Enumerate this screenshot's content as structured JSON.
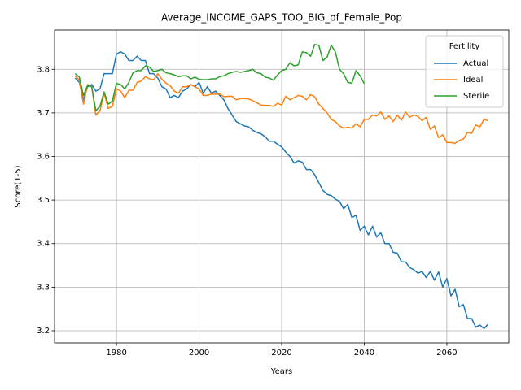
{
  "chart_data": {
    "type": "line",
    "title": "Average_INCOME_GAPS_TOO_BIG_of_Female_Pop",
    "x_label": "Years",
    "y_label": "Score(1-5)",
    "legend_title": "Fertility",
    "legend_loc": "upper right",
    "grid": true,
    "x": [
      1970,
      1971,
      1972,
      1973,
      1974,
      1975,
      1976,
      1977,
      1978,
      1979,
      1980,
      1981,
      1982,
      1983,
      1984,
      1985,
      1986,
      1987,
      1988,
      1989,
      1990,
      1991,
      1992,
      1993,
      1994,
      1995,
      1996,
      1997,
      1998,
      1999,
      2000,
      2001,
      2002,
      2003,
      2004,
      2005,
      2006,
      2007,
      2008,
      2009,
      2010,
      2011,
      2012,
      2013,
      2014,
      2015,
      2016,
      2017,
      2018,
      2019,
      2020,
      2021,
      2022,
      2023,
      2024,
      2025,
      2026,
      2027,
      2028,
      2029,
      2030,
      2031,
      2032,
      2033,
      2034,
      2035,
      2036,
      2037,
      2038,
      2039,
      2040,
      2041,
      2042,
      2043,
      2044,
      2045,
      2046,
      2047,
      2048,
      2049,
      2050,
      2051,
      2052,
      2053,
      2054,
      2055,
      2056,
      2057,
      2058,
      2059,
      2060,
      2061,
      2062,
      2063,
      2064,
      2065,
      2066,
      2067,
      2068,
      2069,
      2070
    ],
    "xlim": [
      1965,
      2075
    ],
    "xticks": [
      1980,
      2000,
      2020,
      2040,
      2060
    ],
    "ylim": [
      3.172,
      3.89
    ],
    "yticks": [
      3.2,
      3.3,
      3.4,
      3.5,
      3.6,
      3.7,
      3.8
    ],
    "series": [
      {
        "name": "Actual",
        "color": "#1f77b4",
        "values": [
          3.78,
          3.77,
          3.73,
          3.76,
          3.765,
          3.75,
          3.755,
          3.79,
          3.79,
          3.79,
          3.835,
          3.84,
          3.835,
          3.82,
          3.82,
          3.83,
          3.82,
          3.82,
          3.79,
          3.79,
          3.78,
          3.76,
          3.755,
          3.735,
          3.74,
          3.735,
          3.75,
          3.755,
          3.765,
          3.76,
          3.77,
          3.745,
          3.76,
          3.745,
          3.75,
          3.74,
          3.73,
          3.71,
          3.695,
          3.68,
          3.675,
          3.67,
          3.668,
          3.66,
          3.655,
          3.652,
          3.645,
          3.635,
          3.635,
          3.628,
          3.622,
          3.61,
          3.6,
          3.585,
          3.59,
          3.587,
          3.57,
          3.57,
          3.558,
          3.54,
          3.522,
          3.513,
          3.51,
          3.502,
          3.497,
          3.48,
          3.49,
          3.46,
          3.465,
          3.43,
          3.44,
          3.42,
          3.44,
          3.415,
          3.425,
          3.4,
          3.4,
          3.38,
          3.378,
          3.358,
          3.358,
          3.345,
          3.34,
          3.332,
          3.336,
          3.322,
          3.336,
          3.316,
          3.335,
          3.3,
          3.32,
          3.28,
          3.295,
          3.255,
          3.26,
          3.228,
          3.228,
          3.208,
          3.213,
          3.205,
          3.215
        ]
      },
      {
        "name": "Ideal",
        "color": "#ff7f0e",
        "values": [
          3.785,
          3.775,
          3.72,
          3.765,
          3.76,
          3.695,
          3.705,
          3.745,
          3.71,
          3.715,
          3.755,
          3.75,
          3.735,
          3.752,
          3.752,
          3.77,
          3.773,
          3.783,
          3.778,
          3.776,
          3.79,
          3.777,
          3.768,
          3.762,
          3.75,
          3.745,
          3.76,
          3.76,
          3.765,
          3.76,
          3.755,
          3.74,
          3.74,
          3.743,
          3.743,
          3.743,
          3.737,
          3.738,
          3.738,
          3.73,
          3.733,
          3.733,
          3.732,
          3.728,
          3.723,
          3.718,
          3.717,
          3.717,
          3.715,
          3.722,
          3.718,
          3.738,
          3.73,
          3.735,
          3.74,
          3.738,
          3.73,
          3.742,
          3.737,
          3.72,
          3.71,
          3.7,
          3.685,
          3.68,
          3.67,
          3.665,
          3.667,
          3.665,
          3.675,
          3.668,
          3.685,
          3.685,
          3.695,
          3.693,
          3.702,
          3.685,
          3.693,
          3.68,
          3.695,
          3.683,
          3.702,
          3.69,
          3.695,
          3.692,
          3.682,
          3.69,
          3.662,
          3.67,
          3.643,
          3.65,
          3.632,
          3.632,
          3.63,
          3.637,
          3.64,
          3.655,
          3.653,
          3.672,
          3.668,
          3.685,
          3.682
        ]
      },
      {
        "name": "Sterile",
        "color": "#2ca02c",
        "values": [
          3.79,
          3.782,
          3.74,
          3.763,
          3.76,
          3.705,
          3.715,
          3.748,
          3.72,
          3.727,
          3.768,
          3.765,
          3.755,
          3.77,
          3.792,
          3.797,
          3.797,
          3.808,
          3.805,
          3.795,
          3.797,
          3.8,
          3.792,
          3.79,
          3.787,
          3.783,
          3.785,
          3.785,
          3.778,
          3.782,
          3.777,
          3.776,
          3.776,
          3.778,
          3.778,
          3.783,
          3.785,
          3.79,
          3.793,
          3.795,
          3.793,
          3.795,
          3.797,
          3.8,
          3.792,
          3.79,
          3.782,
          3.78,
          3.775,
          3.787,
          3.797,
          3.8,
          3.815,
          3.808,
          3.81,
          3.84,
          3.838,
          3.83,
          3.857,
          3.855,
          3.82,
          3.828,
          3.855,
          3.84,
          3.8,
          3.79,
          3.77,
          3.768,
          3.797,
          3.785,
          3.767,
          null,
          null,
          null,
          null,
          null,
          null,
          null,
          null,
          null,
          null,
          null,
          null,
          null,
          null,
          null,
          null,
          null,
          null,
          null,
          null,
          null,
          null,
          null,
          null,
          null,
          null,
          null,
          null,
          null,
          null
        ]
      }
    ]
  }
}
